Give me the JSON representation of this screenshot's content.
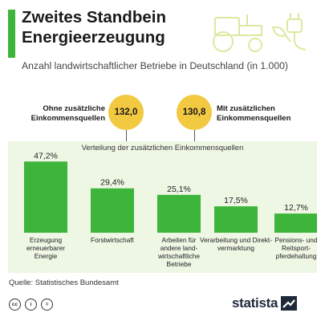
{
  "header": {
    "title": "Zweites Standbein Energieerzeugung",
    "subtitle": "Anzahl landwirtschaftlicher Betriebe in Deutschland (in 1.000)"
  },
  "totals": {
    "without": {
      "label": "Ohne zusätzliche Einkommensquellen",
      "value": "132,0"
    },
    "with": {
      "label": "Mit zusätzlichen Einkommensquellen",
      "value": "130,8"
    }
  },
  "colors": {
    "accent": "#3cb53a",
    "bar": "#3cb53a",
    "bubble": "#f2c940",
    "panel": "#eef6e4"
  },
  "chart_data": {
    "type": "bar",
    "title": "Verteilung der zusätzlichen Einkommensquellen",
    "categories": [
      "Erzeugung erneuerbarer Energie",
      "Forstwirtschaft",
      "Arbeiten für andere land-wirtschaftliche Betriebe",
      "Verarbeitung und Direkt-vermarktung",
      "Pensions- und Reitsport-pferdehaltung"
    ],
    "category_lines": [
      [
        "Erzeugung",
        "erneuerbarer",
        "Energie"
      ],
      [
        "Forstwirtschaft"
      ],
      [
        "Arbeiten für",
        "andere land-",
        "wirtschaftliche",
        "Betriebe"
      ],
      [
        "Verarbeitung und Direkt-",
        "vermarktung"
      ],
      [
        "Pensions- und",
        "Reitsport-",
        "pferdehaltung"
      ]
    ],
    "values": [
      47.2,
      29.4,
      25.1,
      17.5,
      12.7
    ],
    "value_labels": [
      "47,2%",
      "29,4%",
      "25,1%",
      "17,5%",
      "12,7%"
    ],
    "unit": "%",
    "ylim": [
      0,
      50
    ]
  },
  "footer": {
    "source": "Quelle: Statistisches Bundesamt",
    "icons": [
      "cc-icon",
      "by-icon",
      "equals-icon"
    ],
    "brand": "statista"
  }
}
